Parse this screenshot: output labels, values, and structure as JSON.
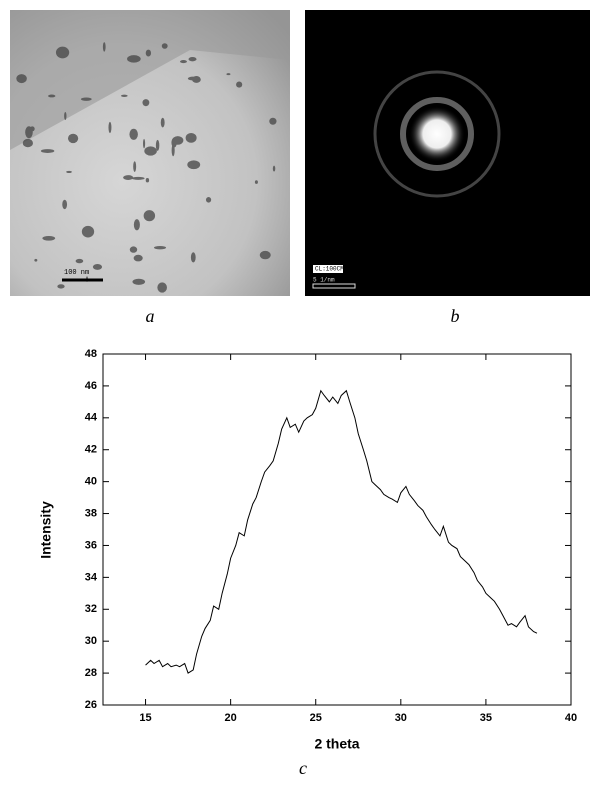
{
  "panels": [
    {
      "label": "a",
      "scale_bar": "100 nm"
    },
    {
      "label": "b",
      "camera_length": "CL:100CM",
      "scale_bar": "5 1/nm"
    }
  ],
  "chart_data": {
    "type": "line",
    "label": "c",
    "xlabel": "2 theta",
    "ylabel": "Intensity",
    "xlim": [
      12.5,
      40
    ],
    "ylim": [
      26,
      48
    ],
    "xticks": [
      15,
      20,
      25,
      30,
      35,
      40
    ],
    "yticks": [
      26,
      28,
      30,
      32,
      34,
      36,
      38,
      40,
      42,
      44,
      46,
      48
    ],
    "color": "#000000",
    "x": [
      15.0,
      15.3,
      15.5,
      15.8,
      16.0,
      16.3,
      16.5,
      16.8,
      17.0,
      17.3,
      17.5,
      17.8,
      18.0,
      18.3,
      18.5,
      18.8,
      19.0,
      19.3,
      19.5,
      19.8,
      20.0,
      20.3,
      20.5,
      20.8,
      21.0,
      21.3,
      21.5,
      21.8,
      22.0,
      22.3,
      22.5,
      22.8,
      23.0,
      23.3,
      23.5,
      23.8,
      24.0,
      24.3,
      24.5,
      24.8,
      25.0,
      25.3,
      25.5,
      25.8,
      26.0,
      26.3,
      26.5,
      26.8,
      27.0,
      27.3,
      27.5,
      27.8,
      28.0,
      28.3,
      28.5,
      28.8,
      29.0,
      29.3,
      29.5,
      29.8,
      30.0,
      30.3,
      30.5,
      30.8,
      31.0,
      31.3,
      31.5,
      31.8,
      32.0,
      32.3,
      32.5,
      32.8,
      33.0,
      33.3,
      33.5,
      33.8,
      34.0,
      34.3,
      34.5,
      34.8,
      35.0,
      35.3,
      35.5,
      35.8,
      36.0,
      36.3,
      36.5,
      36.8,
      37.0,
      37.3,
      37.5,
      37.8,
      38.0
    ],
    "values": [
      28.5,
      28.8,
      28.6,
      28.8,
      28.4,
      28.6,
      28.4,
      28.5,
      28.4,
      28.6,
      28.0,
      28.2,
      29.2,
      30.3,
      30.8,
      31.3,
      32.2,
      32.0,
      33.0,
      34.2,
      35.2,
      36.0,
      36.8,
      36.6,
      37.6,
      38.6,
      39.0,
      40.0,
      40.6,
      41.0,
      41.3,
      42.4,
      43.3,
      44.0,
      43.4,
      43.6,
      43.1,
      43.8,
      44.0,
      44.2,
      44.6,
      45.7,
      45.4,
      45.0,
      45.3,
      44.9,
      45.4,
      45.7,
      45.0,
      44.0,
      43.0,
      42.0,
      41.3,
      40.0,
      39.8,
      39.5,
      39.2,
      39.0,
      38.9,
      38.7,
      39.3,
      39.7,
      39.2,
      38.8,
      38.5,
      38.2,
      37.8,
      37.3,
      37.0,
      36.6,
      37.2,
      36.2,
      36.0,
      35.8,
      35.3,
      35.0,
      34.8,
      34.3,
      33.8,
      33.4,
      33.0,
      32.7,
      32.5,
      32.0,
      31.6,
      31.0,
      31.1,
      30.9,
      31.2,
      31.6,
      30.9,
      30.6,
      30.5
    ]
  }
}
